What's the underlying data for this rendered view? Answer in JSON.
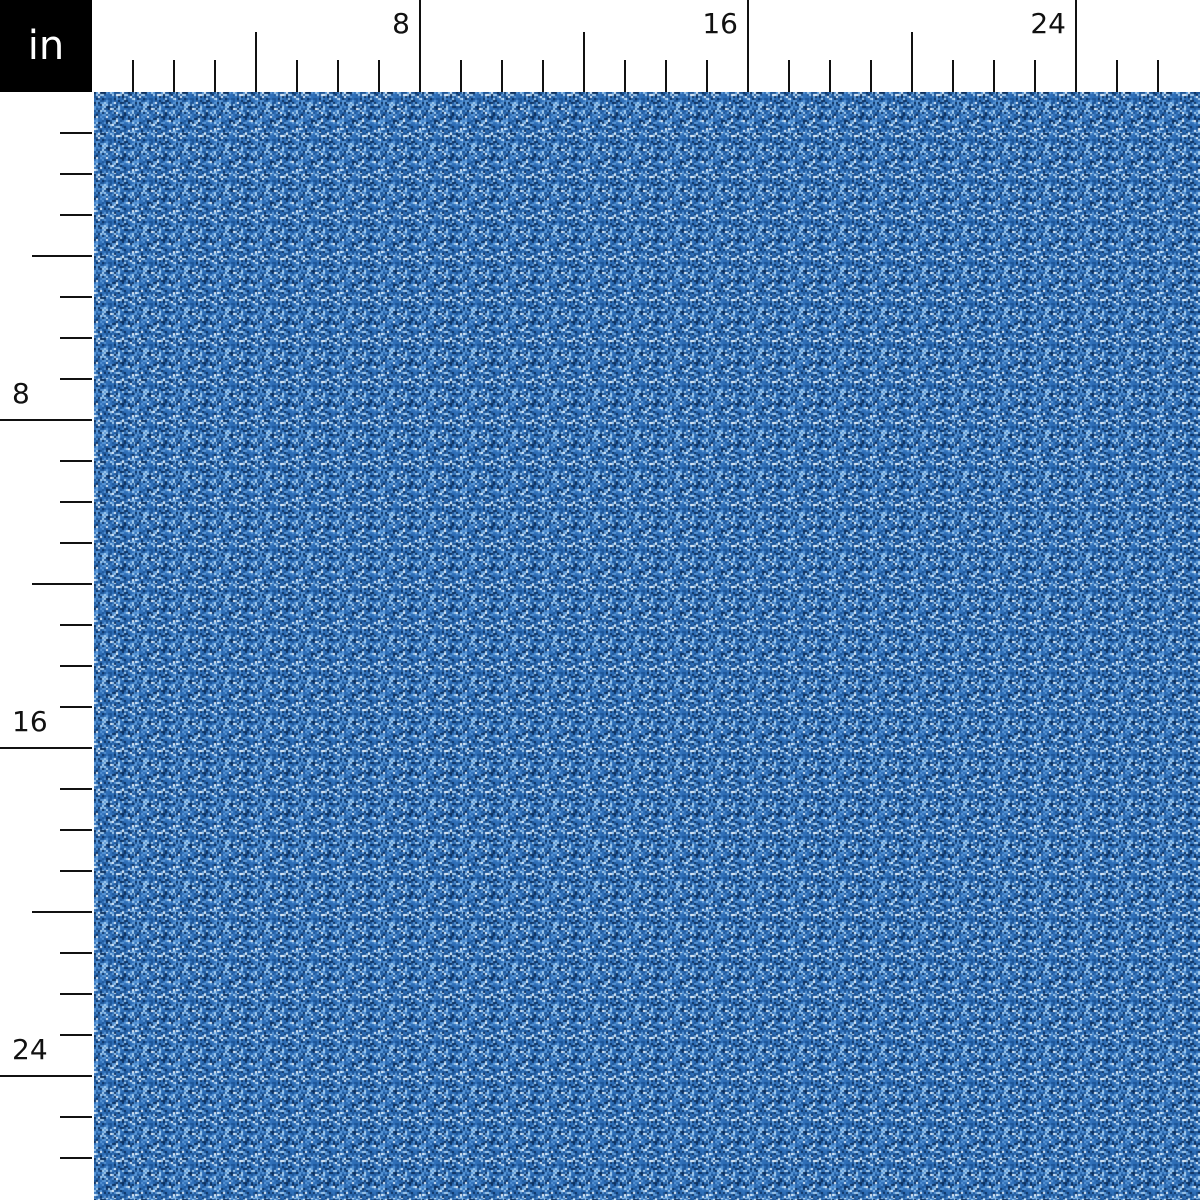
{
  "unit_label": "in",
  "ruler": {
    "pixels_per_inch": 41,
    "top_labels": [
      "8",
      "16",
      "24"
    ],
    "left_labels": [
      "8",
      "16",
      "24"
    ],
    "label_inches": [
      8,
      16,
      24
    ]
  },
  "fabric": {
    "pattern": "blue glitter texture",
    "colors": [
      "#0b2f5e",
      "#1d5597",
      "#2f6fb8",
      "#5a98d8",
      "#a8d0f2",
      "#e8f4ff"
    ]
  }
}
